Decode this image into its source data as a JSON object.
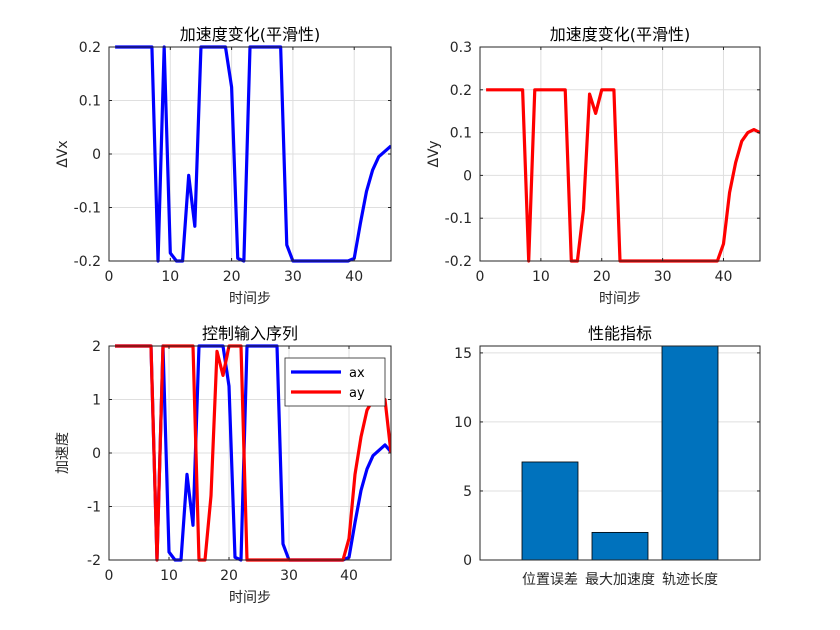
{
  "chart_data": [
    {
      "type": "line",
      "title": "加速度变化(平滑性)",
      "xlabel": "时间步",
      "ylabel": "ΔVx",
      "xlim": [
        0,
        46
      ],
      "ylim": [
        -0.2,
        0.2
      ],
      "xticks": [
        0,
        10,
        20,
        30,
        40
      ],
      "yticks": [
        -0.2,
        -0.1,
        0,
        0.1,
        0.2
      ],
      "ytick_labels": [
        "-0.2",
        "-0.1",
        "0",
        "0.1",
        "0.2"
      ],
      "grid": true,
      "series": [
        {
          "color": "#0000ff",
          "x": [
            1,
            2,
            3,
            4,
            5,
            6,
            7,
            8,
            9,
            10,
            11,
            12,
            13,
            14,
            15,
            16,
            17,
            18,
            19,
            20,
            21,
            22,
            23,
            24,
            25,
            26,
            27,
            28,
            29,
            30,
            31,
            32,
            33,
            34,
            35,
            36,
            37,
            38,
            39,
            40,
            41,
            42,
            43,
            44,
            45,
            46
          ],
          "y": [
            0.2,
            0.2,
            0.2,
            0.2,
            0.2,
            0.2,
            0.2,
            -0.2,
            0.2,
            -0.185,
            -0.2,
            -0.2,
            -0.04,
            -0.135,
            0.2,
            0.2,
            0.2,
            0.2,
            0.2,
            0.125,
            -0.195,
            -0.2,
            0.2,
            0.2,
            0.2,
            0.2,
            0.2,
            0.2,
            -0.17,
            -0.2,
            -0.2,
            -0.2,
            -0.2,
            -0.2,
            -0.2,
            -0.2,
            -0.2,
            -0.2,
            -0.2,
            -0.195,
            -0.13,
            -0.07,
            -0.03,
            -0.005,
            0.005,
            0.015
          ]
        }
      ]
    },
    {
      "type": "line",
      "title": "加速度变化(平滑性)",
      "xlabel": "时间步",
      "ylabel": "ΔVy",
      "xlim": [
        0,
        46
      ],
      "ylim": [
        -0.2,
        0.3
      ],
      "xticks": [
        0,
        10,
        20,
        30,
        40
      ],
      "yticks": [
        -0.2,
        -0.1,
        0,
        0.1,
        0.2,
        0.3
      ],
      "ytick_labels": [
        "-0.2",
        "-0.1",
        "0",
        "0.1",
        "0.2",
        "0.3"
      ],
      "grid": true,
      "series": [
        {
          "color": "#ff0000",
          "x": [
            1,
            2,
            3,
            4,
            5,
            6,
            7,
            8,
            9,
            10,
            11,
            12,
            13,
            14,
            15,
            16,
            17,
            18,
            19,
            20,
            21,
            22,
            23,
            24,
            25,
            26,
            27,
            28,
            29,
            30,
            31,
            32,
            33,
            34,
            35,
            36,
            37,
            38,
            39,
            40,
            41,
            42,
            43,
            44,
            45,
            46
          ],
          "y": [
            0.2,
            0.2,
            0.2,
            0.2,
            0.2,
            0.2,
            0.2,
            -0.2,
            0.2,
            0.2,
            0.2,
            0.2,
            0.2,
            0.2,
            -0.2,
            -0.2,
            -0.08,
            0.19,
            0.145,
            0.2,
            0.2,
            0.2,
            -0.2,
            -0.2,
            -0.2,
            -0.2,
            -0.2,
            -0.2,
            -0.2,
            -0.2,
            -0.2,
            -0.2,
            -0.2,
            -0.2,
            -0.2,
            -0.2,
            -0.2,
            -0.2,
            -0.2,
            -0.16,
            -0.04,
            0.03,
            0.08,
            0.1,
            0.107,
            0.1
          ]
        }
      ]
    },
    {
      "type": "line",
      "title": "控制输入序列",
      "xlabel": "时间步",
      "ylabel": "加速度",
      "xlim": [
        0,
        47
      ],
      "ylim": [
        -2,
        2
      ],
      "xticks": [
        0,
        10,
        20,
        30,
        40
      ],
      "yticks": [
        -2,
        -1,
        0,
        1,
        2
      ],
      "ytick_labels": [
        "-2",
        "-1",
        "0",
        "1",
        "2"
      ],
      "grid": true,
      "legend": {
        "placement": "top-right",
        "entries": [
          "ax",
          "ay"
        ]
      },
      "series": [
        {
          "name": "ax",
          "color": "#0000ff",
          "x": [
            1,
            2,
            3,
            4,
            5,
            6,
            7,
            8,
            9,
            10,
            11,
            12,
            13,
            14,
            15,
            16,
            17,
            18,
            19,
            20,
            21,
            22,
            23,
            24,
            25,
            26,
            27,
            28,
            29,
            30,
            31,
            32,
            33,
            34,
            35,
            36,
            37,
            38,
            39,
            40,
            41,
            42,
            43,
            44,
            45,
            46,
            47
          ],
          "y": [
            2,
            2,
            2,
            2,
            2,
            2,
            2,
            -2,
            2,
            -1.85,
            -2,
            -2,
            -0.4,
            -1.35,
            2,
            2,
            2,
            2,
            2,
            1.25,
            -1.95,
            -2,
            2,
            2,
            2,
            2,
            2,
            2,
            -1.7,
            -2,
            -2,
            -2,
            -2,
            -2,
            -2,
            -2,
            -2,
            -2,
            -2,
            -1.95,
            -1.3,
            -0.7,
            -0.3,
            -0.05,
            0.05,
            0.15,
            0.02
          ]
        },
        {
          "name": "ay",
          "color": "#ff0000",
          "x": [
            1,
            2,
            3,
            4,
            5,
            6,
            7,
            8,
            9,
            10,
            11,
            12,
            13,
            14,
            15,
            16,
            17,
            18,
            19,
            20,
            21,
            22,
            23,
            24,
            25,
            26,
            27,
            28,
            29,
            30,
            31,
            32,
            33,
            34,
            35,
            36,
            37,
            38,
            39,
            40,
            41,
            42,
            43,
            44,
            45,
            46,
            47
          ],
          "y": [
            2,
            2,
            2,
            2,
            2,
            2,
            2,
            -2,
            2,
            2,
            2,
            2,
            2,
            2,
            -2,
            -2,
            -0.8,
            1.9,
            1.45,
            2,
            2,
            2,
            -2,
            -2,
            -2,
            -2,
            -2,
            -2,
            -2,
            -2,
            -2,
            -2,
            -2,
            -2,
            -2,
            -2,
            -2,
            -2,
            -2,
            -1.6,
            -0.4,
            0.3,
            0.8,
            1.0,
            1.07,
            1.0,
            0.0
          ]
        }
      ]
    },
    {
      "type": "bar",
      "title": "性能指标",
      "categories": [
        "位置误差",
        "最大加速度",
        "轨迹长度"
      ],
      "values": [
        7.1,
        2.0,
        15.5
      ],
      "xlim": [
        0,
        4
      ],
      "ylim": [
        0,
        15.5
      ],
      "yticks": [
        0,
        5,
        10,
        15
      ],
      "ytick_labels": [
        "0",
        "5",
        "10",
        "15"
      ],
      "bar_color": "#0072bd",
      "grid": true
    }
  ]
}
